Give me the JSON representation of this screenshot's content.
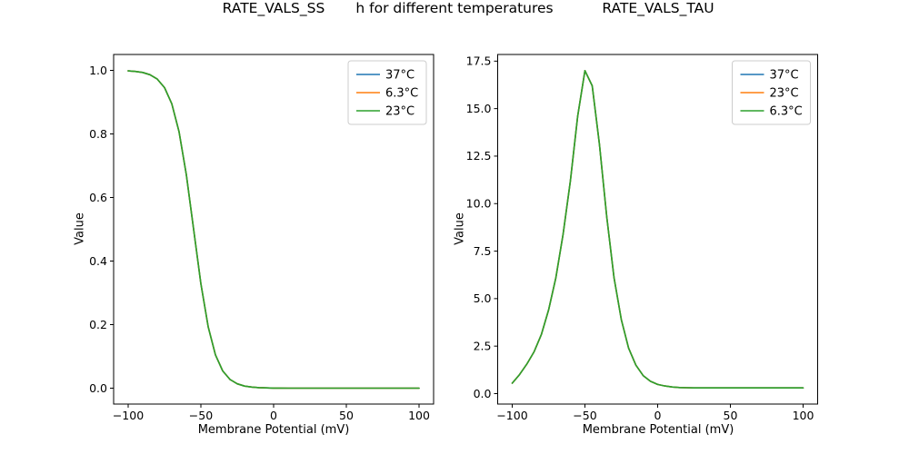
{
  "figure": {
    "suptitle": "h for different temperatures"
  },
  "chart_data": [
    {
      "type": "line",
      "title": "RATE_VALS_SS",
      "xlabel": "Membrane Potential (mV)",
      "ylabel": "Value",
      "xlim": [
        -110,
        110
      ],
      "ylim": [
        -0.05,
        1.05
      ],
      "xticks": [
        -100,
        -50,
        0,
        50,
        100
      ],
      "xtick_labels": [
        "−100",
        "−50",
        "0",
        "50",
        "100"
      ],
      "yticks": [
        0.0,
        0.2,
        0.4,
        0.6,
        0.8,
        1.0
      ],
      "ytick_labels": [
        "0.0",
        "0.2",
        "0.4",
        "0.6",
        "0.8",
        "1.0"
      ],
      "grid": false,
      "legend_position": "upper right",
      "x": [
        -100,
        -95,
        -90,
        -85,
        -80,
        -75,
        -70,
        -65,
        -60,
        -55,
        -50,
        -45,
        -40,
        -35,
        -30,
        -25,
        -20,
        -15,
        -10,
        -5,
        0,
        5,
        10,
        15,
        20,
        25,
        30,
        35,
        40,
        45,
        50,
        55,
        60,
        65,
        70,
        75,
        80,
        85,
        90,
        95,
        100
      ],
      "series": [
        {
          "name": "37°C",
          "color": "#1f77b4",
          "values": [
            0.9984,
            0.9967,
            0.9933,
            0.9864,
            0.9727,
            0.9457,
            0.895,
            0.8067,
            0.6714,
            0.5,
            0.3286,
            0.1933,
            0.105,
            0.0543,
            0.0274,
            0.0136,
            0.0067,
            0.0033,
            0.0016,
            0.0008,
            0.0004,
            0.0002,
            0.0001,
            0,
            0,
            0,
            0,
            0,
            0,
            0,
            0,
            0,
            0,
            0,
            0,
            0,
            0,
            0,
            0,
            0,
            0
          ]
        },
        {
          "name": "6.3°C",
          "color": "#ff7f0e",
          "values": [
            0.9984,
            0.9967,
            0.9933,
            0.9864,
            0.9727,
            0.9457,
            0.895,
            0.8067,
            0.6714,
            0.5,
            0.3286,
            0.1933,
            0.105,
            0.0543,
            0.0274,
            0.0136,
            0.0067,
            0.0033,
            0.0016,
            0.0008,
            0.0004,
            0.0002,
            0.0001,
            0,
            0,
            0,
            0,
            0,
            0,
            0,
            0,
            0,
            0,
            0,
            0,
            0,
            0,
            0,
            0,
            0,
            0
          ]
        },
        {
          "name": "23°C",
          "color": "#2ca02c",
          "values": [
            0.9984,
            0.9967,
            0.9933,
            0.9864,
            0.9727,
            0.9457,
            0.895,
            0.8067,
            0.6714,
            0.5,
            0.3286,
            0.1933,
            0.105,
            0.0543,
            0.0274,
            0.0136,
            0.0067,
            0.0033,
            0.0016,
            0.0008,
            0.0004,
            0.0002,
            0.0001,
            0,
            0,
            0,
            0,
            0,
            0,
            0,
            0,
            0,
            0,
            0,
            0,
            0,
            0,
            0,
            0,
            0,
            0
          ]
        }
      ]
    },
    {
      "type": "line",
      "title": "RATE_VALS_TAU",
      "xlabel": "Membrane Potential (mV)",
      "ylabel": "Value",
      "xlim": [
        -110,
        110
      ],
      "ylim": [
        -0.55,
        17.85
      ],
      "xticks": [
        -100,
        -50,
        0,
        50,
        100
      ],
      "xtick_labels": [
        "−100",
        "−50",
        "0",
        "50",
        "100"
      ],
      "yticks": [
        0.0,
        2.5,
        5.0,
        7.5,
        10.0,
        12.5,
        15.0,
        17.5
      ],
      "ytick_labels": [
        "0.0",
        "2.5",
        "5.0",
        "7.5",
        "10.0",
        "12.5",
        "15.0",
        "17.5"
      ],
      "grid": false,
      "legend_position": "upper right",
      "x": [
        -100,
        -95,
        -90,
        -85,
        -80,
        -75,
        -70,
        -65,
        -60,
        -55,
        -50,
        -45,
        -40,
        -35,
        -30,
        -25,
        -20,
        -15,
        -10,
        -5,
        0,
        5,
        10,
        15,
        20,
        25,
        30,
        35,
        40,
        45,
        50,
        55,
        60,
        65,
        70,
        75,
        80,
        85,
        90,
        95,
        100
      ],
      "series": [
        {
          "name": "37°C",
          "color": "#1f77b4",
          "values": [
            0.55,
            1.0,
            1.55,
            2.2,
            3.1,
            4.4,
            6.1,
            8.4,
            11.2,
            14.6,
            17.0,
            16.2,
            13.1,
            9.3,
            6.1,
            3.9,
            2.4,
            1.5,
            0.95,
            0.65,
            0.48,
            0.4,
            0.35,
            0.32,
            0.31,
            0.3,
            0.3,
            0.3,
            0.3,
            0.3,
            0.3,
            0.3,
            0.3,
            0.3,
            0.3,
            0.3,
            0.3,
            0.3,
            0.3,
            0.3,
            0.3
          ]
        },
        {
          "name": "23°C",
          "color": "#ff7f0e",
          "values": [
            0.55,
            1.0,
            1.55,
            2.2,
            3.1,
            4.4,
            6.1,
            8.4,
            11.2,
            14.6,
            17.0,
            16.2,
            13.1,
            9.3,
            6.1,
            3.9,
            2.4,
            1.5,
            0.95,
            0.65,
            0.48,
            0.4,
            0.35,
            0.32,
            0.31,
            0.3,
            0.3,
            0.3,
            0.3,
            0.3,
            0.3,
            0.3,
            0.3,
            0.3,
            0.3,
            0.3,
            0.3,
            0.3,
            0.3,
            0.3,
            0.3
          ]
        },
        {
          "name": "6.3°C",
          "color": "#2ca02c",
          "values": [
            0.55,
            1.0,
            1.55,
            2.2,
            3.1,
            4.4,
            6.1,
            8.4,
            11.2,
            14.6,
            17.0,
            16.2,
            13.1,
            9.3,
            6.1,
            3.9,
            2.4,
            1.5,
            0.95,
            0.65,
            0.48,
            0.4,
            0.35,
            0.32,
            0.31,
            0.3,
            0.3,
            0.3,
            0.3,
            0.3,
            0.3,
            0.3,
            0.3,
            0.3,
            0.3,
            0.3,
            0.3,
            0.3,
            0.3,
            0.3,
            0.3
          ]
        }
      ]
    }
  ]
}
